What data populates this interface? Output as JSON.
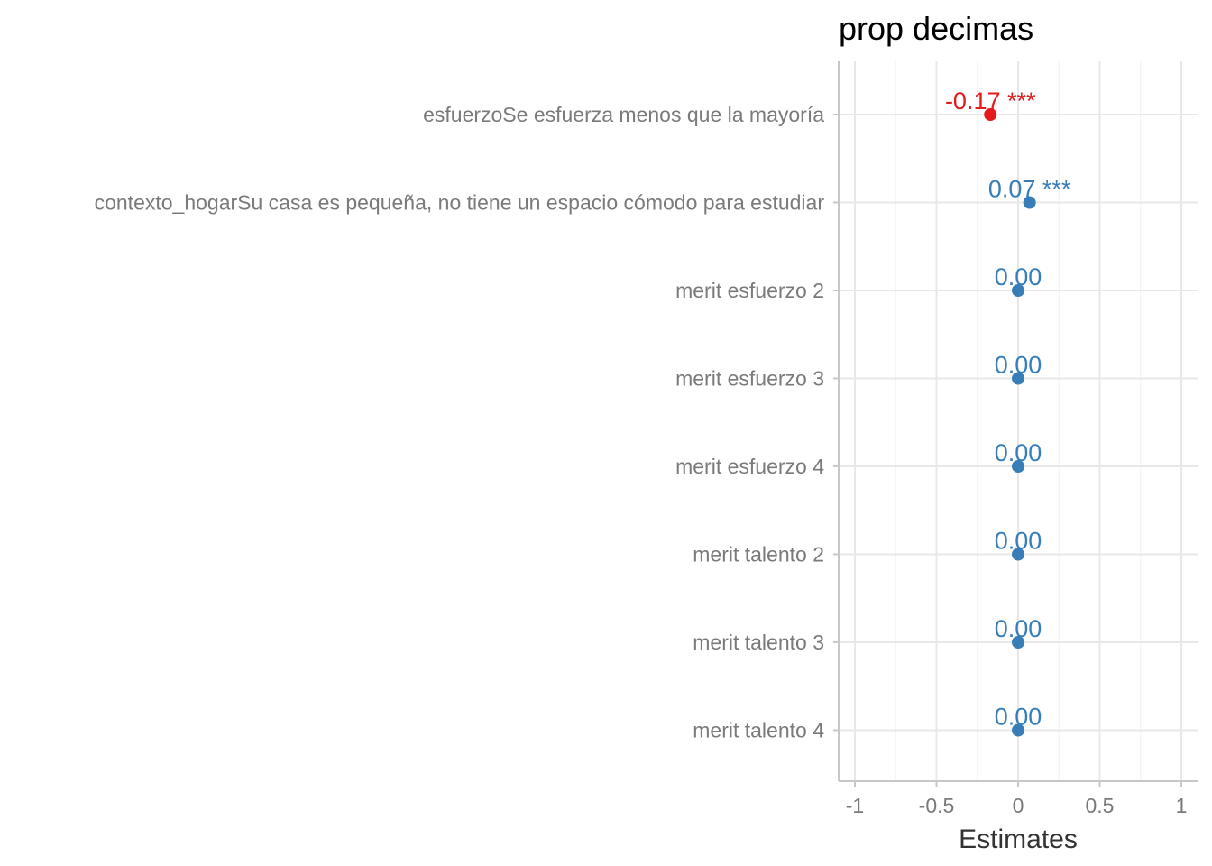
{
  "chart_data": {
    "type": "scatter",
    "title": "prop decimas",
    "xlabel": "Estimates",
    "ylabel": "",
    "xlim": [
      -1,
      1
    ],
    "xticks": [
      -1,
      -0.5,
      0,
      0.5,
      1
    ],
    "xtick_labels": [
      "-1",
      "-0.5",
      "0",
      "0.5",
      "1"
    ],
    "grid": true,
    "categories": [
      "esfuerzoSe esfuerza menos que la mayoría",
      "contexto_hogarSu casa es pequeña, no tiene un espacio cómodo para estudiar",
      "merit esfuerzo 2",
      "merit esfuerzo 3",
      "merit esfuerzo 4",
      "merit talento 2",
      "merit talento 3",
      "merit talento 4"
    ],
    "values": [
      -0.17,
      0.07,
      0.0,
      0.0,
      0.0,
      0.0,
      0.0,
      0.0
    ],
    "labels": [
      "-0.17 ***",
      "0.07 ***",
      "0.00",
      "0.00",
      "0.00",
      "0.00",
      "0.00",
      "0.00"
    ],
    "colors": {
      "negative": "#e41a1c",
      "positive": "#377eb8"
    }
  }
}
